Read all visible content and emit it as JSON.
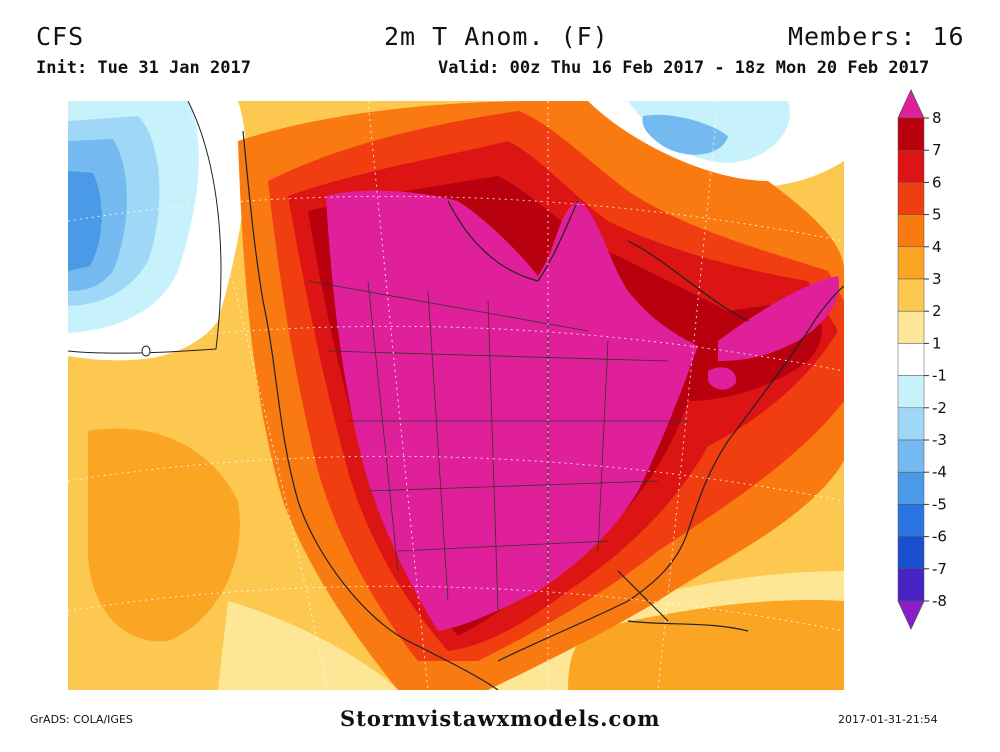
{
  "header": {
    "model": "CFS",
    "title": "2m T Anom. (F)",
    "members": "Members: 16",
    "init": "Init: Tue 31 Jan 2017",
    "valid": "Valid: 00z Thu 16 Feb 2017 - 18z Mon 20 Feb 2017"
  },
  "map": {
    "field": "2m temperature anomaly",
    "region": "North America",
    "contour_label": "0"
  },
  "colorbar": {
    "ticks": [
      "8",
      "7",
      "6",
      "5",
      "4",
      "3",
      "2",
      "1",
      "-1",
      "-2",
      "-3",
      "-4",
      "-5",
      "-6",
      "-7",
      "-8"
    ],
    "colors": {
      "gt8": "#e0209a",
      "7_8": "#b8000e",
      "6_7": "#dd1414",
      "5_6": "#f03e10",
      "4_5": "#f87a10",
      "3_4": "#fba524",
      "2_3": "#fcc850",
      "1_2": "#fde796",
      "-1_1": "#ffffff",
      "-2_-1": "#c8f2fb",
      "-3_-2": "#9fd8f6",
      "-4_-3": "#74baf0",
      "-5_-4": "#4a9ae8",
      "-6_-5": "#2a74e2",
      "-7_-6": "#1a4fd0",
      "-8_-7": "#4824c4",
      "lt-8": "#8a1ec8"
    }
  },
  "footer": {
    "left": "GrADS: COLA/IGES",
    "site": "Stormvistawxmodels.com",
    "stamp": "2017-01-31-21:54"
  }
}
